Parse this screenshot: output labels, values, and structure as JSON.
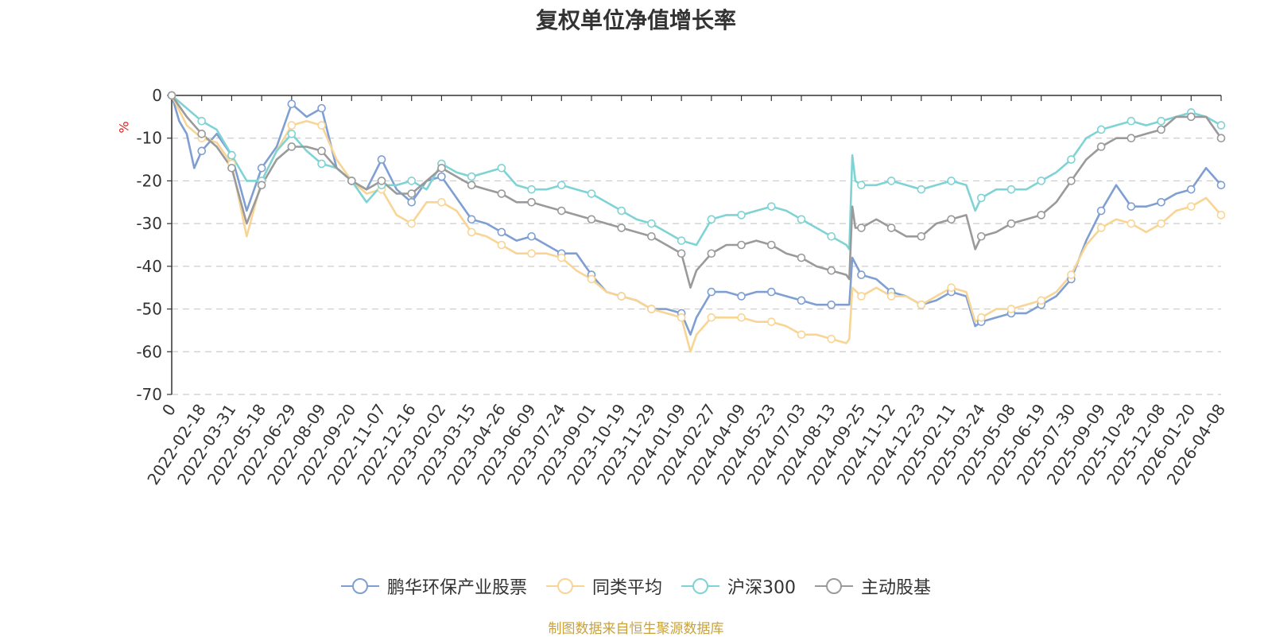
{
  "chart_data": {
    "type": "line",
    "title": "复权单位净值增长率",
    "ylabel": "%",
    "xlabel": "",
    "ylim": [
      -70,
      0
    ],
    "yticks": [
      0,
      -10,
      -20,
      -30,
      -40,
      -50,
      -60,
      -70
    ],
    "grid": true,
    "legend_position": "bottom-center",
    "x_unit": "category index",
    "categories": [
      "0",
      "2022-02-18",
      "2022-03-31",
      "2022-05-18",
      "2022-06-29",
      "2022-08-09",
      "2022-09-20",
      "2022-11-07",
      "2022-12-16",
      "2023-02-02",
      "2023-03-15",
      "2023-04-26",
      "2023-06-09",
      "2023-07-24",
      "2023-09-01",
      "2023-10-19",
      "2023-11-29",
      "2024-01-09",
      "2024-02-27",
      "2024-04-09",
      "2024-05-23",
      "2024-07-03",
      "2024-08-13",
      "2024-09-25",
      "2024-11-12",
      "2024-12-23",
      "2025-02-11",
      "2025-03-24",
      "2025-05-08",
      "2025-06-19",
      "2025-07-30",
      "2025-09-09",
      "2025-10-28",
      "2025-12-08",
      "2026-01-20",
      "2026-04-08"
    ],
    "series": [
      {
        "name": "鹏华环保产业股票",
        "color": "#7f9fd3",
        "points": [
          [
            0,
            0
          ],
          [
            0.25,
            -6
          ],
          [
            0.5,
            -9
          ],
          [
            0.75,
            -17
          ],
          [
            1,
            -13
          ],
          [
            1.5,
            -9
          ],
          [
            2,
            -14
          ],
          [
            2.5,
            -27
          ],
          [
            3,
            -17
          ],
          [
            3.5,
            -12
          ],
          [
            4,
            -2
          ],
          [
            4.5,
            -5
          ],
          [
            5,
            -3
          ],
          [
            5.5,
            -17
          ],
          [
            6,
            -20
          ],
          [
            6.5,
            -22
          ],
          [
            7,
            -15
          ],
          [
            7.5,
            -22
          ],
          [
            8,
            -25
          ],
          [
            8.5,
            -20
          ],
          [
            9,
            -19
          ],
          [
            9.5,
            -24
          ],
          [
            10,
            -29
          ],
          [
            10.5,
            -30
          ],
          [
            11,
            -32
          ],
          [
            11.5,
            -34
          ],
          [
            12,
            -33
          ],
          [
            12.5,
            -35
          ],
          [
            13,
            -37
          ],
          [
            13.5,
            -37
          ],
          [
            14,
            -42
          ],
          [
            14.5,
            -46
          ],
          [
            15,
            -47
          ],
          [
            15.5,
            -48
          ],
          [
            16,
            -50
          ],
          [
            16.5,
            -50
          ],
          [
            17,
            -51
          ],
          [
            17.3,
            -56
          ],
          [
            17.5,
            -52
          ],
          [
            18,
            -46
          ],
          [
            18.5,
            -46
          ],
          [
            19,
            -47
          ],
          [
            19.5,
            -46
          ],
          [
            20,
            -46
          ],
          [
            20.5,
            -47
          ],
          [
            21,
            -48
          ],
          [
            21.5,
            -49
          ],
          [
            22,
            -49
          ],
          [
            22.5,
            -49
          ],
          [
            22.6,
            -49
          ],
          [
            22.7,
            -38
          ],
          [
            23,
            -42
          ],
          [
            23.5,
            -43
          ],
          [
            24,
            -46
          ],
          [
            24.5,
            -47
          ],
          [
            25,
            -49
          ],
          [
            25.5,
            -48
          ],
          [
            26,
            -46
          ],
          [
            26.5,
            -47
          ],
          [
            26.8,
            -54
          ],
          [
            27,
            -53
          ],
          [
            27.5,
            -52
          ],
          [
            28,
            -51
          ],
          [
            28.5,
            -51
          ],
          [
            29,
            -49
          ],
          [
            29.5,
            -47
          ],
          [
            30,
            -43
          ],
          [
            30.5,
            -34
          ],
          [
            31,
            -27
          ],
          [
            31.5,
            -21
          ],
          [
            32,
            -26
          ],
          [
            32.5,
            -26
          ],
          [
            33,
            -25
          ],
          [
            33.5,
            -23
          ],
          [
            34,
            -22
          ],
          [
            34.5,
            -17
          ],
          [
            35,
            -21
          ]
        ]
      },
      {
        "name": "同类平均",
        "color": "#f9d595",
        "points": [
          [
            0,
            0
          ],
          [
            0.5,
            -7
          ],
          [
            1,
            -10
          ],
          [
            1.5,
            -11
          ],
          [
            2,
            -16
          ],
          [
            2.5,
            -33
          ],
          [
            3,
            -20
          ],
          [
            3.5,
            -13
          ],
          [
            4,
            -7
          ],
          [
            4.5,
            -6
          ],
          [
            5,
            -7
          ],
          [
            5.5,
            -15
          ],
          [
            6,
            -20
          ],
          [
            6.5,
            -23
          ],
          [
            7,
            -22
          ],
          [
            7.5,
            -28
          ],
          [
            8,
            -30
          ],
          [
            8.5,
            -25
          ],
          [
            9,
            -25
          ],
          [
            9.5,
            -27
          ],
          [
            10,
            -32
          ],
          [
            10.5,
            -33
          ],
          [
            11,
            -35
          ],
          [
            11.5,
            -37
          ],
          [
            12,
            -37
          ],
          [
            12.5,
            -37
          ],
          [
            13,
            -38
          ],
          [
            13.5,
            -41
          ],
          [
            14,
            -43
          ],
          [
            14.5,
            -46
          ],
          [
            15,
            -47
          ],
          [
            15.5,
            -48
          ],
          [
            16,
            -50
          ],
          [
            16.5,
            -51
          ],
          [
            17,
            -52
          ],
          [
            17.3,
            -60
          ],
          [
            17.5,
            -56
          ],
          [
            18,
            -52
          ],
          [
            18.5,
            -52
          ],
          [
            19,
            -52
          ],
          [
            19.5,
            -53
          ],
          [
            20,
            -53
          ],
          [
            20.5,
            -54
          ],
          [
            21,
            -56
          ],
          [
            21.5,
            -56
          ],
          [
            22,
            -57
          ],
          [
            22.5,
            -58
          ],
          [
            22.6,
            -57
          ],
          [
            22.7,
            -45
          ],
          [
            23,
            -47
          ],
          [
            23.5,
            -45
          ],
          [
            24,
            -47
          ],
          [
            24.5,
            -47
          ],
          [
            25,
            -49
          ],
          [
            25.5,
            -47
          ],
          [
            26,
            -45
          ],
          [
            26.5,
            -46
          ],
          [
            26.8,
            -53
          ],
          [
            27,
            -52
          ],
          [
            27.5,
            -50
          ],
          [
            28,
            -50
          ],
          [
            28.5,
            -49
          ],
          [
            29,
            -48
          ],
          [
            29.5,
            -46
          ],
          [
            30,
            -42
          ],
          [
            30.5,
            -35
          ],
          [
            31,
            -31
          ],
          [
            31.5,
            -29
          ],
          [
            32,
            -30
          ],
          [
            32.5,
            -32
          ],
          [
            33,
            -30
          ],
          [
            33.5,
            -27
          ],
          [
            34,
            -26
          ],
          [
            34.5,
            -24
          ],
          [
            35,
            -28
          ]
        ]
      },
      {
        "name": "沪深300",
        "color": "#7fd3d4",
        "points": [
          [
            0,
            0
          ],
          [
            0.5,
            -3
          ],
          [
            1,
            -6
          ],
          [
            1.5,
            -8
          ],
          [
            2,
            -14
          ],
          [
            2.5,
            -20
          ],
          [
            3,
            -20
          ],
          [
            3.5,
            -13
          ],
          [
            4,
            -9
          ],
          [
            4.5,
            -13
          ],
          [
            5,
            -16
          ],
          [
            5.5,
            -17
          ],
          [
            6,
            -20
          ],
          [
            6.5,
            -25
          ],
          [
            7,
            -21
          ],
          [
            7.5,
            -21
          ],
          [
            8,
            -20
          ],
          [
            8.5,
            -22
          ],
          [
            9,
            -16
          ],
          [
            9.5,
            -18
          ],
          [
            10,
            -19
          ],
          [
            10.5,
            -18
          ],
          [
            11,
            -17
          ],
          [
            11.5,
            -21
          ],
          [
            12,
            -22
          ],
          [
            12.5,
            -22
          ],
          [
            13,
            -21
          ],
          [
            13.5,
            -22
          ],
          [
            14,
            -23
          ],
          [
            14.5,
            -25
          ],
          [
            15,
            -27
          ],
          [
            15.5,
            -29
          ],
          [
            16,
            -30
          ],
          [
            16.5,
            -32
          ],
          [
            17,
            -34
          ],
          [
            17.5,
            -35
          ],
          [
            18,
            -29
          ],
          [
            18.5,
            -28
          ],
          [
            19,
            -28
          ],
          [
            19.5,
            -27
          ],
          [
            20,
            -26
          ],
          [
            20.5,
            -27
          ],
          [
            21,
            -29
          ],
          [
            21.5,
            -31
          ],
          [
            22,
            -33
          ],
          [
            22.5,
            -35
          ],
          [
            22.6,
            -36
          ],
          [
            22.7,
            -14
          ],
          [
            22.8,
            -20
          ],
          [
            23,
            -21
          ],
          [
            23.5,
            -21
          ],
          [
            24,
            -20
          ],
          [
            24.5,
            -21
          ],
          [
            25,
            -22
          ],
          [
            25.5,
            -21
          ],
          [
            26,
            -20
          ],
          [
            26.5,
            -21
          ],
          [
            26.8,
            -27
          ],
          [
            27,
            -24
          ],
          [
            27.5,
            -22
          ],
          [
            28,
            -22
          ],
          [
            28.5,
            -22
          ],
          [
            29,
            -20
          ],
          [
            29.5,
            -18
          ],
          [
            30,
            -15
          ],
          [
            30.5,
            -10
          ],
          [
            31,
            -8
          ],
          [
            31.5,
            -7
          ],
          [
            32,
            -6
          ],
          [
            32.5,
            -7
          ],
          [
            33,
            -6
          ],
          [
            33.5,
            -5
          ],
          [
            34,
            -4
          ],
          [
            34.5,
            -5
          ],
          [
            35,
            -7
          ]
        ]
      },
      {
        "name": "主动股基",
        "color": "#9a9a9a",
        "points": [
          [
            0,
            0
          ],
          [
            0.5,
            -5
          ],
          [
            1,
            -9
          ],
          [
            1.5,
            -12
          ],
          [
            2,
            -17
          ],
          [
            2.5,
            -30
          ],
          [
            3,
            -21
          ],
          [
            3.5,
            -15
          ],
          [
            4,
            -12
          ],
          [
            4.5,
            -12
          ],
          [
            5,
            -13
          ],
          [
            5.5,
            -17
          ],
          [
            6,
            -20
          ],
          [
            6.5,
            -22
          ],
          [
            7,
            -20
          ],
          [
            7.5,
            -23
          ],
          [
            8,
            -23
          ],
          [
            8.5,
            -20
          ],
          [
            9,
            -17
          ],
          [
            9.5,
            -19
          ],
          [
            10,
            -21
          ],
          [
            10.5,
            -22
          ],
          [
            11,
            -23
          ],
          [
            11.5,
            -25
          ],
          [
            12,
            -25
          ],
          [
            12.5,
            -26
          ],
          [
            13,
            -27
          ],
          [
            13.5,
            -28
          ],
          [
            14,
            -29
          ],
          [
            14.5,
            -30
          ],
          [
            15,
            -31
          ],
          [
            15.5,
            -32
          ],
          [
            16,
            -33
          ],
          [
            16.5,
            -35
          ],
          [
            17,
            -37
          ],
          [
            17.3,
            -45
          ],
          [
            17.5,
            -41
          ],
          [
            18,
            -37
          ],
          [
            18.5,
            -35
          ],
          [
            19,
            -35
          ],
          [
            19.5,
            -34
          ],
          [
            20,
            -35
          ],
          [
            20.5,
            -37
          ],
          [
            21,
            -38
          ],
          [
            21.5,
            -40
          ],
          [
            22,
            -41
          ],
          [
            22.5,
            -42
          ],
          [
            22.6,
            -43
          ],
          [
            22.7,
            -26
          ],
          [
            22.8,
            -31
          ],
          [
            23,
            -31
          ],
          [
            23.5,
            -29
          ],
          [
            24,
            -31
          ],
          [
            24.5,
            -33
          ],
          [
            25,
            -33
          ],
          [
            25.5,
            -30
          ],
          [
            26,
            -29
          ],
          [
            26.5,
            -28
          ],
          [
            26.8,
            -36
          ],
          [
            27,
            -33
          ],
          [
            27.5,
            -32
          ],
          [
            28,
            -30
          ],
          [
            28.5,
            -29
          ],
          [
            29,
            -28
          ],
          [
            29.5,
            -25
          ],
          [
            30,
            -20
          ],
          [
            30.5,
            -15
          ],
          [
            31,
            -12
          ],
          [
            31.5,
            -10
          ],
          [
            32,
            -10
          ],
          [
            32.5,
            -9
          ],
          [
            33,
            -8
          ],
          [
            33.5,
            -5
          ],
          [
            34,
            -5
          ],
          [
            34.5,
            -5
          ],
          [
            35,
            -10
          ]
        ]
      }
    ]
  },
  "ylabel_color": "#e02020",
  "axis_color": "#333333",
  "grid_color": "#cccccc",
  "source_note": "制图数据来自恒生聚源数据库"
}
